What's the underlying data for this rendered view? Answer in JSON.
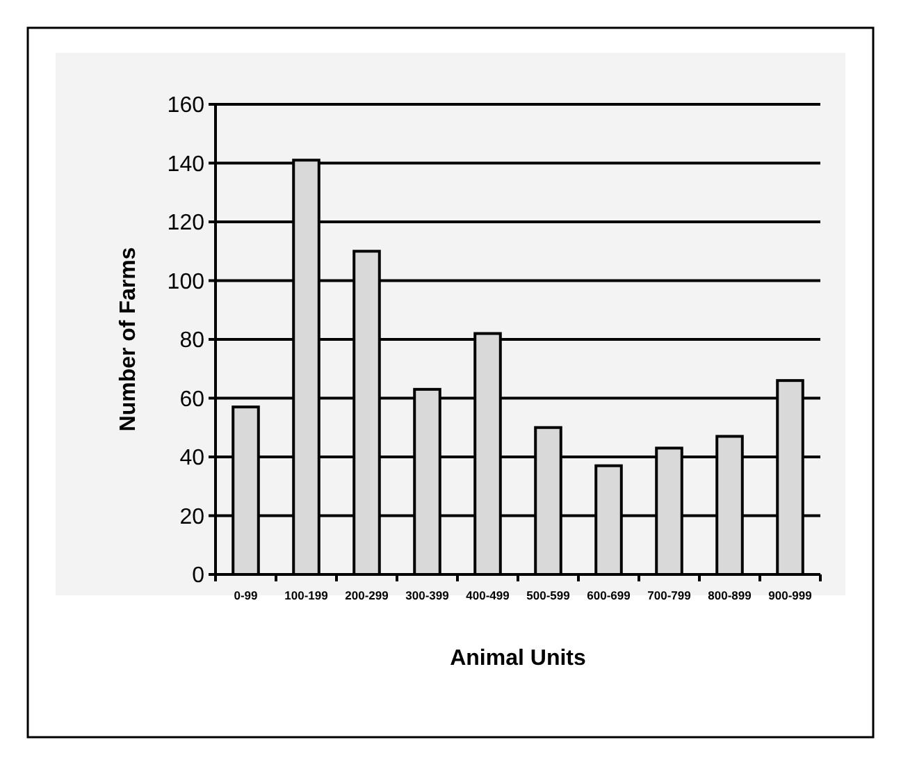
{
  "chart_data": {
    "type": "bar",
    "xlabel": "Animal Units",
    "ylabel": "Number of Farms",
    "categories": [
      "0-99",
      "100-199",
      "200-299",
      "300-399",
      "400-499",
      "500-599",
      "600-699",
      "700-799",
      "800-899",
      "900-999"
    ],
    "values": [
      57,
      141,
      110,
      63,
      82,
      50,
      37,
      43,
      47,
      66
    ],
    "color": "#d9d9d9",
    "ylim": [
      0,
      160
    ],
    "yticks": [
      0,
      20,
      40,
      60,
      80,
      100,
      120,
      140,
      160
    ],
    "grid": "y"
  }
}
